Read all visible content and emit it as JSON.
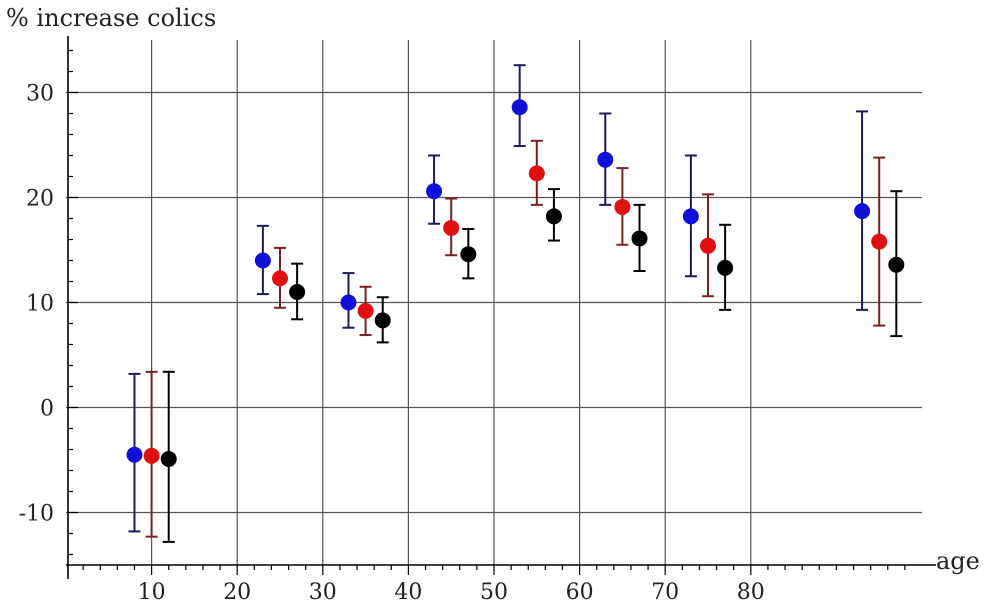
{
  "chart_data": {
    "type": "scatter",
    "ylabel": "% increase colics",
    "xlabel": "age",
    "xlim": [
      0,
      100
    ],
    "ylim": [
      -15,
      35
    ],
    "grid": true,
    "x_ticks": [
      10,
      20,
      30,
      40,
      50,
      60,
      70,
      80
    ],
    "y_ticks": [
      -10,
      0,
      10,
      20,
      30
    ],
    "x_tick_labels": [
      "10",
      "20",
      "30",
      "40",
      "50",
      "60",
      "70",
      "80"
    ],
    "y_tick_labels": [
      "-10",
      "0",
      "10",
      "20",
      "30"
    ],
    "error_bars": true,
    "series": [
      {
        "color": "#1010d8",
        "bar_color": "#1a1a5a",
        "points": [
          {
            "x": 8,
            "y": -4.5,
            "low": -11.8,
            "high": 3.2
          },
          {
            "x": 23,
            "y": 14.0,
            "low": 10.8,
            "high": 17.3
          },
          {
            "x": 33,
            "y": 10.0,
            "low": 7.6,
            "high": 12.8
          },
          {
            "x": 43,
            "y": 20.6,
            "low": 17.5,
            "high": 24.0
          },
          {
            "x": 53,
            "y": 28.6,
            "low": 24.9,
            "high": 32.6
          },
          {
            "x": 63,
            "y": 23.6,
            "low": 19.3,
            "high": 28.0
          },
          {
            "x": 73,
            "y": 18.2,
            "low": 12.5,
            "high": 24.0
          },
          {
            "x": 93,
            "y": 18.7,
            "low": 9.3,
            "high": 28.2
          }
        ]
      },
      {
        "color": "#e01010",
        "bar_color": "#7a2020",
        "points": [
          {
            "x": 10,
            "y": -4.6,
            "low": -12.3,
            "high": 3.4
          },
          {
            "x": 25,
            "y": 12.3,
            "low": 9.5,
            "high": 15.2
          },
          {
            "x": 35,
            "y": 9.2,
            "low": 6.9,
            "high": 11.5
          },
          {
            "x": 45,
            "y": 17.1,
            "low": 14.5,
            "high": 19.9
          },
          {
            "x": 55,
            "y": 22.3,
            "low": 19.3,
            "high": 25.4
          },
          {
            "x": 65,
            "y": 19.1,
            "low": 15.5,
            "high": 22.8
          },
          {
            "x": 75,
            "y": 15.4,
            "low": 10.6,
            "high": 20.3
          },
          {
            "x": 95,
            "y": 15.8,
            "low": 7.8,
            "high": 23.8
          }
        ]
      },
      {
        "color": "#000000",
        "bar_color": "#000000",
        "points": [
          {
            "x": 12,
            "y": -4.9,
            "low": -12.8,
            "high": 3.4
          },
          {
            "x": 27,
            "y": 11.0,
            "low": 8.4,
            "high": 13.7
          },
          {
            "x": 37,
            "y": 8.3,
            "low": 6.2,
            "high": 10.5
          },
          {
            "x": 47,
            "y": 14.6,
            "low": 12.3,
            "high": 17.0
          },
          {
            "x": 57,
            "y": 18.2,
            "low": 15.9,
            "high": 20.8
          },
          {
            "x": 67,
            "y": 16.1,
            "low": 13.0,
            "high": 19.3
          },
          {
            "x": 77,
            "y": 13.3,
            "low": 9.3,
            "high": 17.4
          },
          {
            "x": 97,
            "y": 13.6,
            "low": 6.8,
            "high": 20.6
          }
        ]
      }
    ]
  }
}
